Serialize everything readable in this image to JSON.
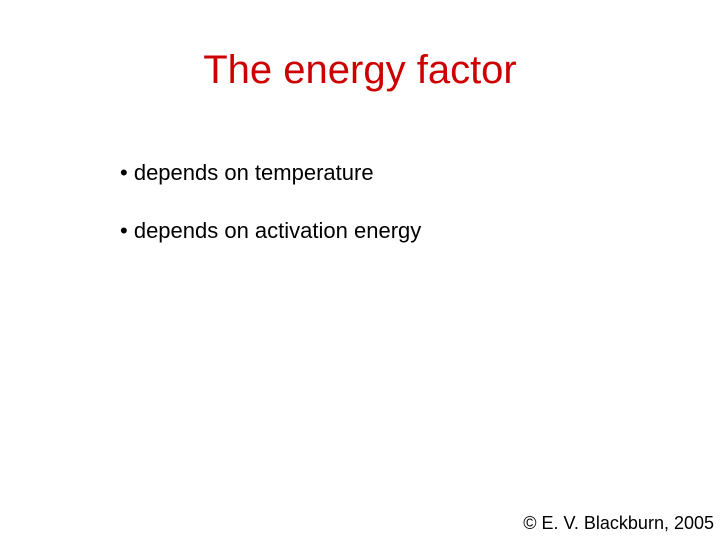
{
  "colors": {
    "title": "#cc0000",
    "body": "#000000",
    "background": "#ffffff"
  },
  "typography": {
    "title_fontsize": 40,
    "body_fontsize": 22,
    "copyright_fontsize": 18,
    "font_family": "Arial"
  },
  "slide": {
    "title": "The energy factor",
    "bullets": [
      "depends on temperature",
      "depends on activation energy"
    ],
    "copyright": "© E. V. Blackburn, 2005"
  }
}
